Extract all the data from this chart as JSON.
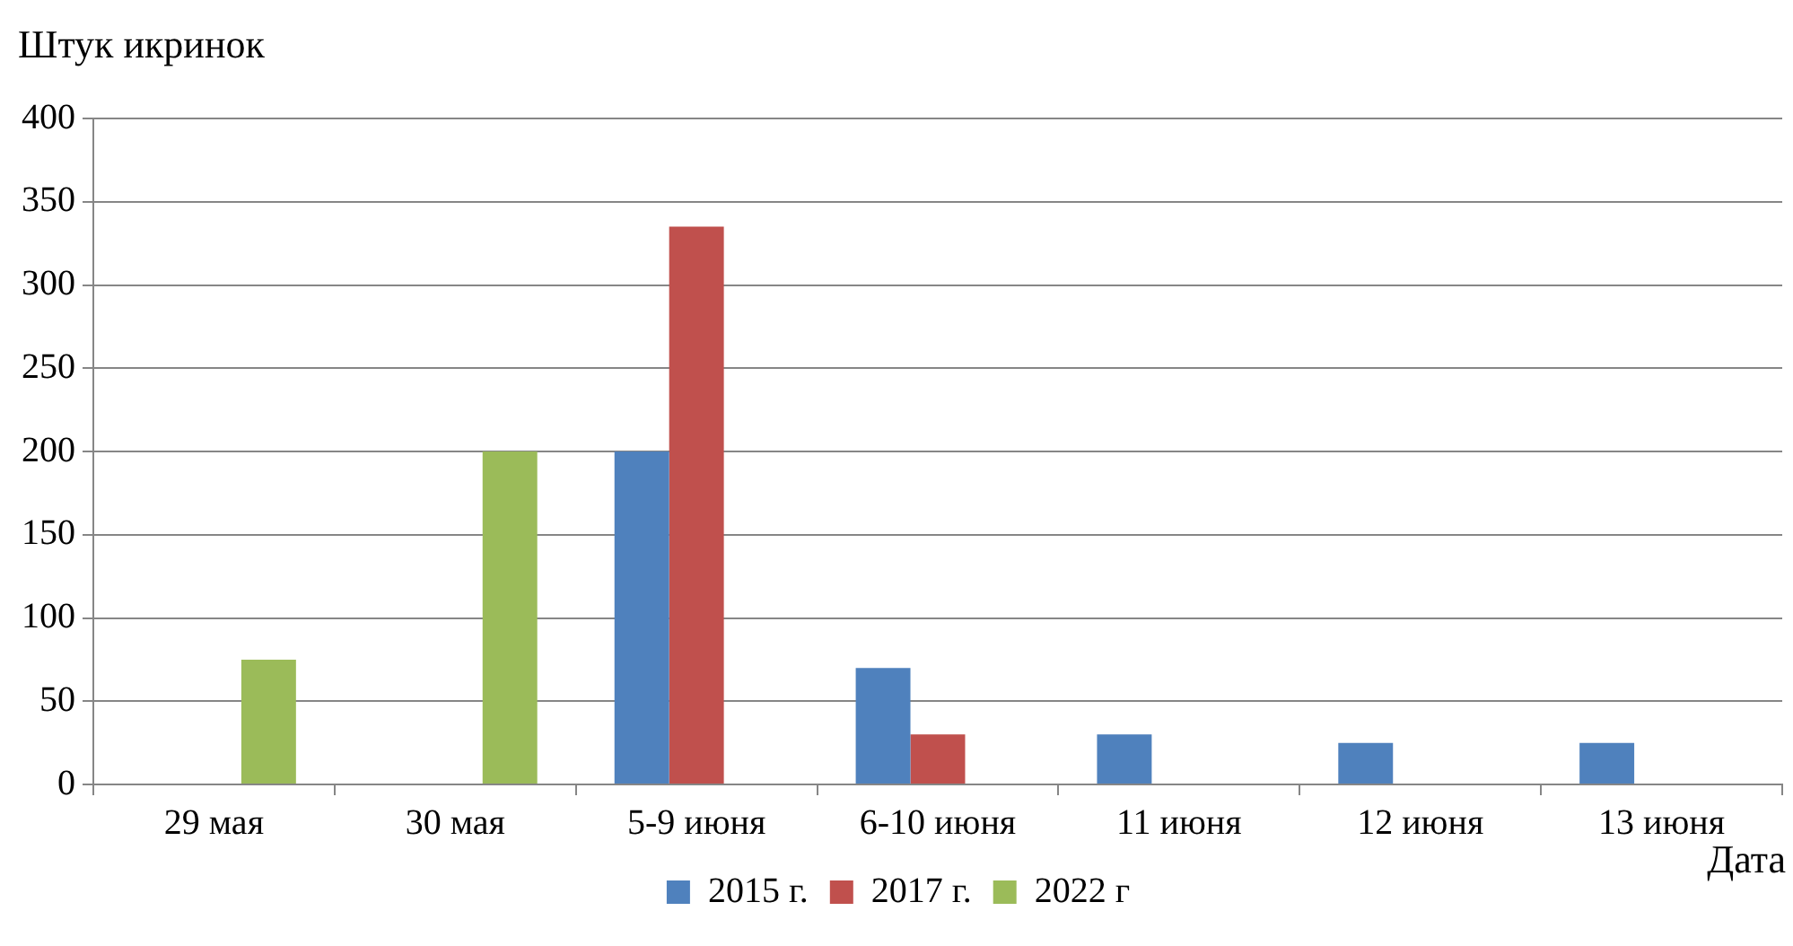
{
  "chart_data": {
    "type": "bar",
    "ylabel": "Штук икринок",
    "xlabel": "Дата",
    "categories": [
      "29 мая",
      "30 мая",
      "5-9 июня",
      "6-10 июня",
      "11 июня",
      "12 июня",
      "13 июня"
    ],
    "series": [
      {
        "name": "2015 г.",
        "color": "#4f81bd",
        "values": [
          null,
          null,
          200,
          70,
          30,
          25,
          25
        ]
      },
      {
        "name": "2017 г.",
        "color": "#c0504d",
        "values": [
          null,
          null,
          335,
          30,
          null,
          null,
          null
        ]
      },
      {
        "name": "2022 г",
        "color": "#9bbb59",
        "values": [
          75,
          200,
          null,
          null,
          null,
          null,
          null
        ]
      }
    ],
    "ylim": [
      0,
      400
    ],
    "yticks": [
      0,
      50,
      100,
      150,
      200,
      250,
      300,
      350,
      400
    ],
    "grid": "y",
    "legend": "bottom"
  }
}
